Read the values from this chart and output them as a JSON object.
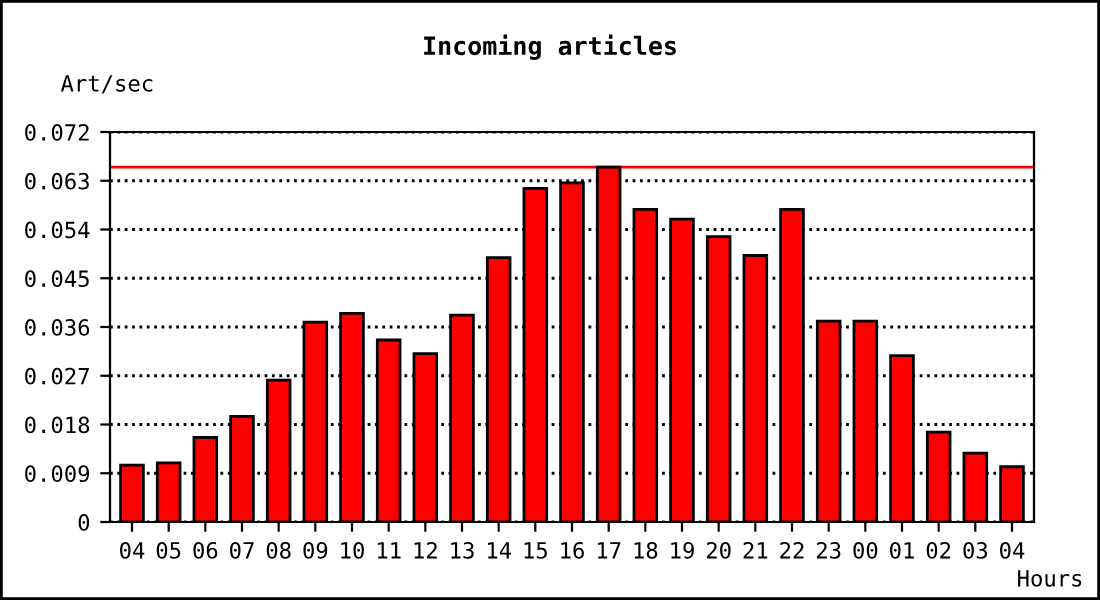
{
  "chart_data": {
    "type": "bar",
    "title": "Incoming articles",
    "ylabel": "Art/sec",
    "xlabel": "Hours",
    "categories": [
      "04",
      "05",
      "06",
      "07",
      "08",
      "09",
      "10",
      "11",
      "12",
      "13",
      "14",
      "15",
      "16",
      "17",
      "18",
      "19",
      "20",
      "21",
      "22",
      "23",
      "00",
      "01",
      "02",
      "03",
      "04"
    ],
    "series": [
      {
        "color": "#ff0000",
        "values": [
          0.0105,
          0.0109,
          0.0156,
          0.0195,
          0.0262,
          0.0369,
          0.0385,
          0.0336,
          0.0311,
          0.0382,
          0.0488,
          0.0616,
          0.0626,
          0.0655,
          0.0577,
          0.0559,
          0.0527,
          0.0492,
          0.0577,
          0.0371,
          0.0371,
          0.0307,
          0.0166,
          0.0127,
          0.0102
        ]
      }
    ],
    "ylim": [
      0,
      0.072
    ],
    "yticks": [
      {
        "value": 0,
        "label": "0"
      },
      0.009,
      0.018,
      0.027,
      0.036,
      0.045,
      0.054,
      0.063,
      0.072
    ],
    "ref_lines": [
      {
        "axis": "y",
        "value": 0.0655,
        "color": "#ff0000",
        "line_style": "solid"
      }
    ],
    "grid": "y",
    "line_style": "dotted"
  }
}
